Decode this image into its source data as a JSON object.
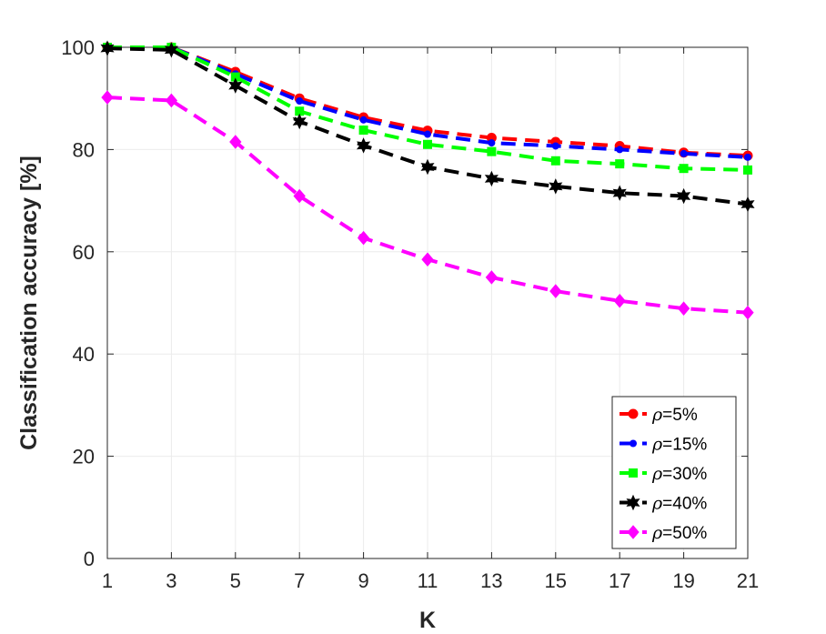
{
  "chart_data": {
    "type": "line",
    "title": "",
    "xlabel": "K",
    "ylabel": "Classification accuracy [%]",
    "x": [
      1,
      3,
      5,
      7,
      9,
      11,
      13,
      15,
      17,
      19,
      21
    ],
    "xlim": [
      1,
      21
    ],
    "ylim": [
      0,
      100
    ],
    "xticks": [
      1,
      3,
      5,
      7,
      9,
      11,
      13,
      15,
      17,
      19,
      21
    ],
    "yticks": [
      0,
      20,
      40,
      60,
      80,
      100
    ],
    "grid": true,
    "legend_position": "bottom-right",
    "series": [
      {
        "name": "ρ=5%",
        "rho": "ρ",
        "suffix": "=5%",
        "color": "#ff0000",
        "marker": "circle",
        "values": [
          100,
          100,
          95.2,
          90.0,
          86.3,
          83.7,
          82.3,
          81.5,
          80.7,
          79.4,
          78.8
        ]
      },
      {
        "name": "ρ=15%",
        "rho": "ρ",
        "suffix": "=15%",
        "color": "#0000ff",
        "marker": "point",
        "values": [
          100,
          100,
          94.8,
          89.5,
          85.8,
          83.0,
          81.3,
          80.7,
          80.0,
          79.2,
          78.5
        ]
      },
      {
        "name": "ρ=30%",
        "rho": "ρ",
        "suffix": "=30%",
        "color": "#00ff00",
        "marker": "square",
        "values": [
          100,
          100,
          94.2,
          87.5,
          83.8,
          81.0,
          79.6,
          77.8,
          77.2,
          76.3,
          76.0
        ]
      },
      {
        "name": "ρ=40%",
        "rho": "ρ",
        "suffix": "=40%",
        "color": "#000000",
        "marker": "hexagram",
        "values": [
          99.8,
          99.5,
          92.5,
          85.5,
          80.8,
          76.6,
          74.3,
          72.8,
          71.5,
          70.9,
          69.3
        ]
      },
      {
        "name": "ρ=50%",
        "rho": "ρ",
        "suffix": "=50%",
        "color": "#ff00ff",
        "marker": "diamond",
        "values": [
          90.2,
          89.6,
          81.5,
          70.9,
          62.7,
          58.5,
          55.0,
          52.3,
          50.4,
          48.9,
          48.1
        ]
      }
    ]
  }
}
